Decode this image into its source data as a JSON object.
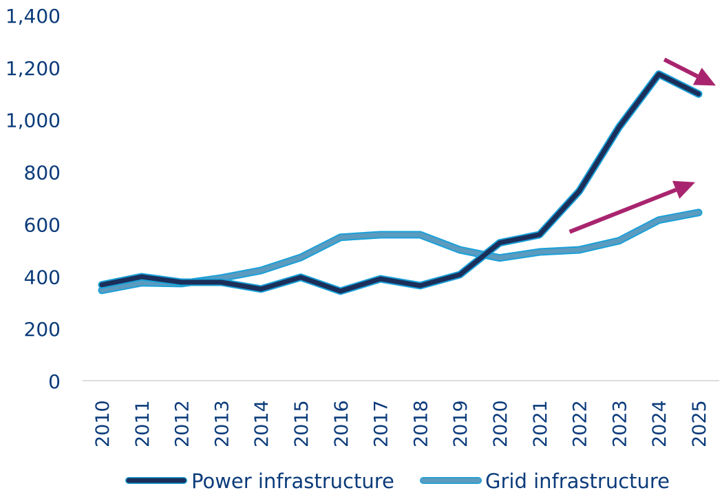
{
  "chart_data": {
    "type": "line",
    "title": "",
    "xlabel": "",
    "ylabel": "",
    "x": [
      "2010",
      "2011",
      "2012",
      "2013",
      "2014",
      "2015",
      "2016",
      "2017",
      "2018",
      "2019",
      "2020",
      "2021",
      "2022",
      "2023",
      "2024",
      "2025"
    ],
    "ylim": [
      0,
      1400
    ],
    "yticks": [
      0,
      200,
      400,
      600,
      800,
      1000,
      1200,
      1400
    ],
    "ytick_labels": [
      "0",
      "200",
      "400",
      "600",
      "800",
      "1,000",
      "1,200",
      "1,400"
    ],
    "grid": false,
    "legend_position": "bottom",
    "series": [
      {
        "name": "Power infrastructure",
        "color": "#1b2f5a",
        "outline": "#1aa0d8",
        "values": [
          367,
          398,
          377,
          377,
          351,
          396,
          343,
          390,
          364,
          406,
          528,
          559,
          726,
          971,
          1174,
          1098
        ]
      },
      {
        "name": "Grid infrastructure",
        "color": "#5b9bbf",
        "outline": "#1aa0d8",
        "values": [
          346,
          375,
          372,
          393,
          422,
          472,
          549,
          559,
          559,
          501,
          470,
          493,
          501,
          536,
          615,
          644
        ]
      }
    ],
    "annotations": [
      {
        "type": "arrow",
        "direction": "down-right",
        "color": "#a8246e",
        "from": [
          "2024",
          1230
        ],
        "to": [
          "2025",
          1130
        ]
      },
      {
        "type": "arrow",
        "direction": "up-right",
        "color": "#a8246e",
        "from": [
          "2022",
          570
        ],
        "to": [
          "2025",
          760
        ]
      }
    ],
    "axis_color": "#0b3b7a"
  }
}
